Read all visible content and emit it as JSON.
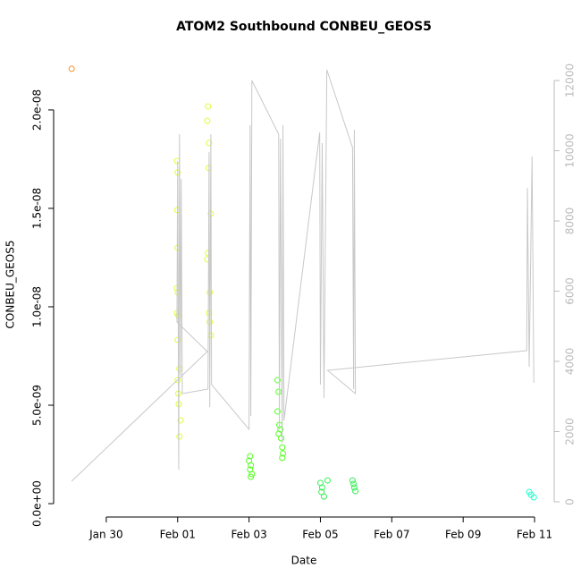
{
  "chart_data": {
    "type": "scatter",
    "title": "ATOM2 Southbound CONBEU_GEOS5",
    "xlabel": "Date",
    "ylabel": "CONBEU_GEOS5",
    "xlim": [
      28.525,
      42.55
    ],
    "xticks": [
      {
        "value": 30,
        "label": "Jan 30"
      },
      {
        "value": 32,
        "label": "Feb 01"
      },
      {
        "value": 34,
        "label": "Feb 03"
      },
      {
        "value": 36,
        "label": "Feb 05"
      },
      {
        "value": 38,
        "label": "Feb 07"
      },
      {
        "value": 40,
        "label": "Feb 09"
      },
      {
        "value": 42,
        "label": "Feb 11"
      }
    ],
    "ylim": [
      -6.8e-10,
      2.295e-08
    ],
    "yticks": [
      {
        "value": 0,
        "label": "0.0e+00"
      },
      {
        "value": 5e-09,
        "label": "5.0e-09"
      },
      {
        "value": 1e-08,
        "label": "1.0e-08"
      },
      {
        "value": 1.5e-08,
        "label": "1.5e-08"
      },
      {
        "value": 2e-08,
        "label": "2.0e-08"
      }
    ],
    "y2lim": [
      -433,
      12815
    ],
    "y2ticks": [
      0,
      2000,
      4000,
      6000,
      8000,
      10000,
      12000
    ],
    "series": [
      {
        "color": "#ff8c1a",
        "x": [
          29.03
        ],
        "values": [
          2.209e-08
        ]
      },
      {
        "color": "#ddff33",
        "x": [
          31.98,
          32.0,
          31.99,
          32.0,
          31.98,
          32.0,
          31.98,
          32.02,
          32.0,
          32.05,
          32.0,
          32.02,
          32.03,
          32.08,
          32.05,
          32.85,
          32.83,
          32.88,
          32.87,
          32.93,
          32.85,
          32.83,
          32.9,
          32.88,
          32.9,
          32.93
        ],
        "values": [
          1.741e-08,
          1.682e-08,
          1.491e-08,
          1.3e-08,
          1.095e-08,
          1.073e-08,
          9.68e-09,
          9.55e-09,
          8.32e-09,
          6.86e-09,
          6.27e-09,
          5.59e-09,
          5.05e-09,
          4.23e-09,
          3.41e-09,
          2.018e-08,
          1.945e-08,
          1.832e-08,
          1.705e-08,
          1.473e-08,
          1.273e-08,
          1.241e-08,
          1.073e-08,
          9.68e-09,
          9.23e-09,
          8.55e-09
        ]
      },
      {
        "color": "#55ff22",
        "x": [
          34.03,
          34.0,
          34.05,
          34.03,
          34.08,
          34.05,
          34.8,
          34.83,
          34.8,
          34.85,
          34.88,
          34.83,
          34.9,
          34.93,
          34.95,
          34.93
        ],
        "values": [
          2.41e-09,
          2.18e-09,
          1.95e-09,
          1.73e-09,
          1.5e-09,
          1.36e-09,
          6.27e-09,
          5.68e-09,
          4.68e-09,
          4e-09,
          3.77e-09,
          3.55e-09,
          3.32e-09,
          2.86e-09,
          2.55e-09,
          2.32e-09
        ]
      },
      {
        "color": "#33ee55",
        "x": [
          36.0,
          36.05,
          36.03,
          36.1,
          36.2,
          36.9,
          36.93,
          36.95,
          36.98
        ],
        "values": [
          1.05e-09,
          8.2e-10,
          5.9e-10,
          3.6e-10,
          1.18e-09,
          1.18e-09,
          1e-09,
          8.2e-10,
          6.4e-10
        ]
      },
      {
        "color": "#22ffcc",
        "x": [
          41.85,
          41.9,
          41.98
        ],
        "values": [
          5.9e-10,
          4.5e-10,
          3.2e-10
        ]
      },
      {
        "type": "line",
        "axis": "y2",
        "color": "#c8c8c8",
        "x": [
          29.03,
          32.83,
          31.98,
          32.0,
          32.03,
          32.05,
          32.08,
          32.1,
          32.13,
          32.85,
          32.88,
          32.9,
          32.93,
          32.95,
          34.0,
          34.03,
          34.05,
          34.08,
          34.83,
          34.85,
          34.88,
          34.93,
          34.95,
          34.98,
          35.98,
          36.0,
          36.05,
          36.1,
          36.18,
          36.9,
          36.93,
          36.95,
          36.98,
          36.2,
          41.78,
          41.8,
          41.85,
          41.93,
          41.98
        ],
        "values": [
          586,
          4280,
          5121,
          9707,
          917,
          10471,
          3592,
          9198,
          3083,
          3210,
          9962,
          2701,
          10471,
          3338,
          2064,
          10726,
          2446,
          12000,
          10471,
          2064,
          10344,
          1682,
          10726,
          2318,
          10522,
          3338,
          10217,
          2955,
          12306,
          10089,
          3210,
          10599,
          3083,
          3745,
          4306,
          8943,
          3847,
          9835,
          3389
        ]
      }
    ]
  }
}
